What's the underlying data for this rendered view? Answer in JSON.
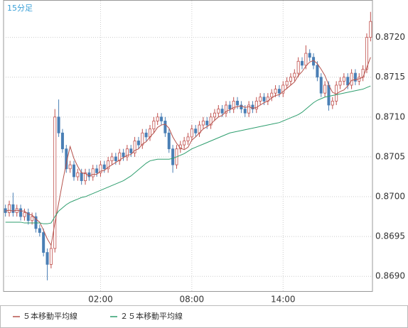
{
  "chart_data": {
    "type": "candlestick",
    "title": "15分足",
    "categories": [
      null,
      null,
      null,
      null,
      null,
      null,
      null,
      null,
      null,
      null,
      null,
      null,
      null,
      null,
      null,
      null,
      null,
      null,
      null,
      null,
      null,
      null,
      null,
      null,
      null,
      "02:00",
      null,
      null,
      null,
      null,
      null,
      null,
      null,
      null,
      null,
      null,
      null,
      null,
      null,
      null,
      null,
      null,
      null,
      null,
      null,
      null,
      null,
      null,
      null,
      "08:00",
      null,
      null,
      null,
      null,
      null,
      null,
      null,
      null,
      null,
      null,
      null,
      null,
      null,
      null,
      null,
      null,
      null,
      null,
      null,
      null,
      null,
      null,
      null,
      "14:00",
      null,
      null,
      null,
      null,
      null,
      null,
      null,
      null,
      null,
      null,
      null,
      null,
      null,
      null,
      null,
      null,
      null,
      null,
      null,
      null,
      null,
      null,
      null
    ],
    "open": [
      0.86985,
      0.8698,
      0.8699,
      0.8698,
      0.86985,
      0.86975,
      0.8698,
      0.8697,
      0.86975,
      0.8696,
      0.86955,
      0.8693,
      0.86915,
      0.86935,
      0.871,
      0.8708,
      0.8706,
      0.87035,
      0.8704,
      0.87025,
      0.8703,
      0.8702,
      0.8703,
      0.87025,
      0.87035,
      0.8703,
      0.8704,
      0.87035,
      0.87045,
      0.8705,
      0.87045,
      0.87055,
      0.8705,
      0.8706,
      0.87055,
      0.8707,
      0.87065,
      0.8708,
      0.87075,
      0.87085,
      0.87095,
      0.871,
      0.87095,
      0.8708,
      0.8706,
      0.8704,
      0.8706,
      0.87065,
      0.8707,
      0.87075,
      0.87085,
      0.8708,
      0.8709,
      0.87095,
      0.8709,
      0.871,
      0.87105,
      0.8711,
      0.87105,
      0.87115,
      0.8711,
      0.8712,
      0.87115,
      0.8711,
      0.87105,
      0.87115,
      0.8711,
      0.8712,
      0.87125,
      0.8712,
      0.87125,
      0.8713,
      0.87135,
      0.8713,
      0.8714,
      0.87145,
      0.8715,
      0.87155,
      0.8717,
      0.87165,
      0.8718,
      0.87175,
      0.87165,
      0.8715,
      0.8713,
      0.8714,
      0.87115,
      0.8712,
      0.8714,
      0.87145,
      0.8715,
      0.8714,
      0.87155,
      0.87145,
      0.8715,
      0.8716,
      0.872
    ],
    "high": [
      0.8699,
      0.86995,
      0.87005,
      0.8699,
      0.8699,
      0.86985,
      0.86985,
      0.8698,
      0.8698,
      0.86965,
      0.8696,
      0.86935,
      0.8694,
      0.8711,
      0.87122,
      0.87085,
      0.87065,
      0.87045,
      0.87045,
      0.87035,
      0.87035,
      0.87035,
      0.87035,
      0.8704,
      0.8704,
      0.87045,
      0.87045,
      0.8705,
      0.87055,
      0.87055,
      0.8706,
      0.8706,
      0.87065,
      0.87065,
      0.87075,
      0.87075,
      0.87085,
      0.87085,
      0.8709,
      0.871,
      0.87105,
      0.87105,
      0.871,
      0.87085,
      0.87065,
      0.87065,
      0.8707,
      0.87075,
      0.8708,
      0.8709,
      0.8709,
      0.87095,
      0.871,
      0.871,
      0.87105,
      0.8711,
      0.87115,
      0.87115,
      0.8712,
      0.8712,
      0.87125,
      0.87125,
      0.8712,
      0.87115,
      0.8712,
      0.8712,
      0.87125,
      0.8713,
      0.8713,
      0.8713,
      0.87135,
      0.8714,
      0.8714,
      0.87145,
      0.8715,
      0.87155,
      0.8716,
      0.87175,
      0.87175,
      0.8719,
      0.87185,
      0.8718,
      0.8717,
      0.87155,
      0.87145,
      0.87145,
      0.87125,
      0.87145,
      0.8715,
      0.87155,
      0.87155,
      0.8716,
      0.8716,
      0.87155,
      0.87165,
      0.87205,
      0.87232
    ],
    "low": [
      0.86975,
      0.86975,
      0.86975,
      0.86975,
      0.8697,
      0.8697,
      0.86965,
      0.86965,
      0.86955,
      0.8695,
      0.86925,
      0.86895,
      0.8691,
      0.8693,
      0.87075,
      0.87055,
      0.8703,
      0.8703,
      0.8702,
      0.8702,
      0.87015,
      0.87015,
      0.8702,
      0.8702,
      0.87025,
      0.87025,
      0.8703,
      0.8703,
      0.8704,
      0.8704,
      0.8704,
      0.87045,
      0.87045,
      0.8705,
      0.8705,
      0.8706,
      0.8706,
      0.8707,
      0.8707,
      0.8708,
      0.8709,
      0.8709,
      0.87075,
      0.87055,
      0.8703,
      0.87035,
      0.87055,
      0.8706,
      0.87065,
      0.8707,
      0.87075,
      0.87075,
      0.87085,
      0.87085,
      0.87085,
      0.87095,
      0.871,
      0.871,
      0.871,
      0.87105,
      0.87105,
      0.8711,
      0.87105,
      0.871,
      0.871,
      0.87105,
      0.87105,
      0.87115,
      0.87115,
      0.87115,
      0.8712,
      0.87125,
      0.87125,
      0.87125,
      0.87135,
      0.8714,
      0.87145,
      0.8715,
      0.8716,
      0.8716,
      0.8717,
      0.8716,
      0.87145,
      0.87125,
      0.87125,
      0.87108,
      0.8711,
      0.87115,
      0.87135,
      0.8714,
      0.87135,
      0.87135,
      0.8714,
      0.8714,
      0.87145,
      0.87155,
      0.87195
    ],
    "close": [
      0.8698,
      0.8699,
      0.8698,
      0.86985,
      0.86975,
      0.8698,
      0.8697,
      0.86975,
      0.8696,
      0.86955,
      0.8693,
      0.86915,
      0.86935,
      0.871,
      0.8708,
      0.8706,
      0.87035,
      0.8704,
      0.87025,
      0.8703,
      0.8702,
      0.8703,
      0.87025,
      0.87035,
      0.8703,
      0.8704,
      0.87035,
      0.87045,
      0.8705,
      0.87045,
      0.87055,
      0.8705,
      0.8706,
      0.87055,
      0.8707,
      0.87065,
      0.8708,
      0.87075,
      0.87085,
      0.87095,
      0.871,
      0.87095,
      0.8708,
      0.8706,
      0.8704,
      0.8706,
      0.87065,
      0.8707,
      0.87075,
      0.87085,
      0.8708,
      0.8709,
      0.87095,
      0.8709,
      0.871,
      0.87105,
      0.8711,
      0.87105,
      0.87115,
      0.8711,
      0.8712,
      0.87115,
      0.8711,
      0.87105,
      0.87115,
      0.8711,
      0.8712,
      0.87125,
      0.8712,
      0.87125,
      0.8713,
      0.87135,
      0.8713,
      0.8714,
      0.87145,
      0.8715,
      0.87155,
      0.8717,
      0.87165,
      0.8718,
      0.87175,
      0.87165,
      0.8715,
      0.8713,
      0.8714,
      0.87115,
      0.8712,
      0.8714,
      0.87145,
      0.8715,
      0.8714,
      0.87155,
      0.87145,
      0.8715,
      0.8716,
      0.872,
      0.8722
    ],
    "up_color": "#c0504d",
    "down_color": "#4a7fb5",
    "series": [
      {
        "name": "５本移動平均線",
        "color": "#b5524c",
        "values": [
          0.86982,
          0.86983,
          0.86982,
          0.86983,
          0.86982,
          0.86982,
          0.86978,
          0.86977,
          0.86972,
          0.86968,
          0.86958,
          0.86947,
          0.86939,
          0.86967,
          0.86992,
          0.87018,
          0.87042,
          0.87063,
          0.87048,
          0.87038,
          0.8703,
          0.87029,
          0.87026,
          0.87028,
          0.87028,
          0.87032,
          0.87033,
          0.87037,
          0.8704,
          0.87043,
          0.87046,
          0.87049,
          0.87052,
          0.87053,
          0.87058,
          0.8706,
          0.87066,
          0.87069,
          0.87075,
          0.8708,
          0.87087,
          0.8709,
          0.87091,
          0.87086,
          0.87075,
          0.87067,
          0.87061,
          0.87059,
          0.87062,
          0.87071,
          0.87075,
          0.8708,
          0.87085,
          0.87088,
          0.87091,
          0.87096,
          0.871,
          0.87102,
          0.87107,
          0.87109,
          0.87112,
          0.87113,
          0.87114,
          0.87112,
          0.87113,
          0.87111,
          0.87112,
          0.87115,
          0.87118,
          0.8712,
          0.87124,
          0.87127,
          0.87128,
          0.87132,
          0.87136,
          0.8714,
          0.87144,
          0.87152,
          0.87157,
          0.87164,
          0.87169,
          0.87171,
          0.87167,
          0.8716,
          0.87152,
          0.8714,
          0.87131,
          0.87129,
          0.87132,
          0.87134,
          0.87139,
          0.87146,
          0.87147,
          0.87148,
          0.8715,
          0.87162,
          0.87175
        ]
      },
      {
        "name": "２５本移動平均線",
        "color": "#2e9e6e",
        "values": [
          0.86968,
          0.86968,
          0.86968,
          0.86968,
          0.86968,
          0.86967,
          0.86967,
          0.86967,
          0.86967,
          0.86967,
          0.86966,
          0.86966,
          0.86967,
          0.86975,
          0.86982,
          0.86986,
          0.8699,
          0.86993,
          0.86995,
          0.86997,
          0.86999,
          0.87,
          0.87002,
          0.87004,
          0.87006,
          0.87008,
          0.8701,
          0.87012,
          0.87014,
          0.87016,
          0.87018,
          0.8702,
          0.87023,
          0.87026,
          0.8703,
          0.87034,
          0.87038,
          0.87042,
          0.87045,
          0.87046,
          0.87047,
          0.87047,
          0.87047,
          0.87047,
          0.87048,
          0.8705,
          0.87052,
          0.87054,
          0.87057,
          0.8706,
          0.87062,
          0.87064,
          0.87066,
          0.87068,
          0.8707,
          0.87072,
          0.87074,
          0.87076,
          0.87078,
          0.8708,
          0.87081,
          0.87082,
          0.87083,
          0.87084,
          0.87085,
          0.87086,
          0.87087,
          0.87088,
          0.87089,
          0.8709,
          0.87091,
          0.87092,
          0.87093,
          0.87095,
          0.87097,
          0.87099,
          0.87101,
          0.87103,
          0.87106,
          0.8711,
          0.87114,
          0.87118,
          0.87121,
          0.87123,
          0.87125,
          0.87126,
          0.87127,
          0.87128,
          0.87129,
          0.8713,
          0.87131,
          0.87132,
          0.87133,
          0.87134,
          0.87135,
          0.87137,
          0.87139
        ]
      }
    ],
    "ylim": [
      0.868815,
      0.87246
    ],
    "yticks": [
      {
        "value": 0.869,
        "label": "0.8690"
      },
      0.8695,
      {
        "value": 0.87,
        "label": "0.8700"
      },
      0.8705,
      {
        "value": 0.871,
        "label": "0.8710"
      },
      0.8715,
      {
        "value": 0.872,
        "label": "0.8720"
      }
    ],
    "grid": true
  }
}
